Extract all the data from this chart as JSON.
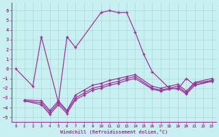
{
  "xlabel": "Windchill (Refroidissement éolien,°C)",
  "bg_color": "#c8f0f0",
  "grid_color": "#a8d8d8",
  "line_color": "#993399",
  "xlim": [
    -0.5,
    23.5
  ],
  "ylim": [
    -5.5,
    6.8
  ],
  "yticks": [
    -5,
    -4,
    -3,
    -2,
    -1,
    0,
    1,
    2,
    3,
    4,
    5,
    6
  ],
  "xticks": [
    0,
    1,
    2,
    3,
    4,
    5,
    6,
    7,
    8,
    9,
    10,
    11,
    12,
    13,
    14,
    15,
    16,
    17,
    18,
    19,
    20,
    21,
    22,
    23
  ],
  "main_x": [
    0,
    2,
    3,
    5,
    6,
    7,
    10,
    11,
    12,
    13,
    14,
    15,
    16,
    18,
    19,
    20,
    21,
    23
  ],
  "main_y": [
    0,
    -1.8,
    3.3,
    -3.5,
    3.3,
    2.2,
    5.8,
    6.0,
    5.8,
    5.8,
    3.8,
    1.5,
    -0.3,
    -2.0,
    -2.1,
    -1.0,
    -1.7,
    -1.2
  ],
  "low1_x": [
    1,
    3,
    4,
    5,
    6,
    7,
    8,
    9,
    10,
    11,
    12,
    13,
    14,
    16,
    17,
    18,
    19,
    20,
    21,
    23
  ],
  "low1_y": [
    -3.3,
    -3.5,
    -4.5,
    -3.5,
    -4.4,
    -3.0,
    -2.5,
    -2.0,
    -1.8,
    -1.5,
    -1.3,
    -1.0,
    -0.8,
    -2.0,
    -2.2,
    -2.0,
    -1.8,
    -2.5,
    -1.5,
    -1.2
  ],
  "low2_x": [
    1,
    3,
    4,
    5,
    6,
    7,
    8,
    9,
    10,
    11,
    12,
    13,
    14,
    16,
    17,
    18,
    19,
    20,
    21,
    23
  ],
  "low2_y": [
    -3.3,
    -3.7,
    -4.7,
    -3.7,
    -4.6,
    -3.2,
    -2.7,
    -2.2,
    -2.0,
    -1.7,
    -1.5,
    -1.2,
    -1.0,
    -2.1,
    -2.3,
    -2.1,
    -2.0,
    -2.6,
    -1.7,
    -1.3
  ],
  "low3_x": [
    1,
    3,
    4,
    5,
    6,
    7,
    8,
    9,
    10,
    11,
    12,
    13,
    14,
    16,
    17,
    18,
    19,
    20,
    21,
    23
  ],
  "low3_y": [
    -3.2,
    -3.3,
    -4.3,
    -3.3,
    -4.3,
    -2.7,
    -2.2,
    -1.7,
    -1.5,
    -1.2,
    -1.0,
    -0.8,
    -0.6,
    -1.8,
    -2.0,
    -1.8,
    -1.6,
    -2.3,
    -1.4,
    -1.0
  ]
}
